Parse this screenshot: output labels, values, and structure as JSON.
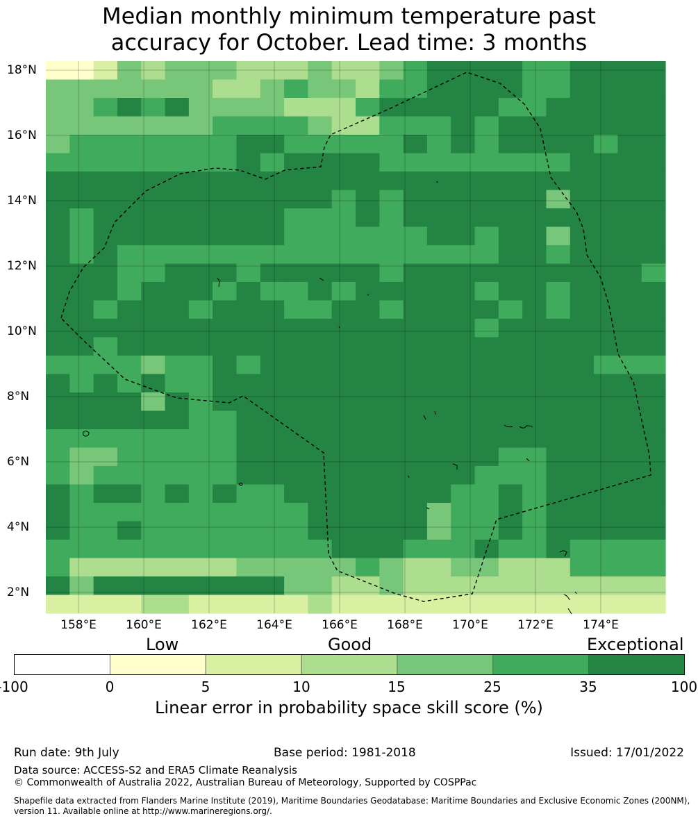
{
  "title": {
    "line1": "Median monthly minimum temperature past",
    "line2": "accuracy for October. Lead time: 3 months"
  },
  "map": {
    "lat_labels": [
      "18°N",
      "16°N",
      "14°N",
      "12°N",
      "10°N",
      "8°N",
      "6°N",
      "4°N",
      "2°N"
    ],
    "lon_labels": [
      "158°E",
      "160°E",
      "162°E",
      "164°E",
      "166°E",
      "168°E",
      "170°E",
      "172°E",
      "174°E"
    ],
    "grid": [
      "00132333222322345555445555",
      "33333332234332445555445555",
      "33454533332224555554455555",
      "33333334444322444545555555",
      "34444444554444454545555455",
      "44444444545555444444445555",
      "55555555555555555555555555",
      "55555555555545455555535555",
      "54555555554445455555555555",
      "54555555554444445545535555",
      "54544444444444444445545555",
      "55544555455555455555555554",
      "55545554544545555545545555",
      "55455545554455455554545555",
      "55555555555555555545555555",
      "55455555555555555555555555",
      "44443445455555555555555444",
      "54545445555555555555555555",
      "55553545555555555555555555",
      "55555544555555555555555555",
      "44444444555555555555555555",
      "43344444555555555554455555",
      "43444444555555555544455555",
      "54554545445555555445455555",
      "54444444444555553445455555",
      "54454444444555553445455555",
      "44444444444455544454454444",
      "42222222333334322332224444",
      "53555555553322322222222222",
      "11112211111211111111111111"
    ]
  },
  "colorbar": {
    "categories": [
      "Low",
      "Good",
      "Exceptional"
    ],
    "ticks": [
      "-100",
      "0",
      "5",
      "10",
      "15",
      "25",
      "35",
      "100"
    ],
    "colors": [
      "#ffffff",
      "#ffffcc",
      "#d9f0a3",
      "#addd8e",
      "#78c679",
      "#41ab5d",
      "#238443"
    ],
    "title": "Linear error in probability space skill score (%)"
  },
  "footer": {
    "run_date": "Run date: 9th July",
    "base_period": "Base period: 1981-2018",
    "issued": "Issued: 17/01/2022",
    "data_source": "Data source: ACCESS-S2 and ERA5 Climate Reanalysis",
    "copyright": "© Commonwealth of Australia 2022, Australian Bureau of Meteorology, Supported by COSPPac",
    "shapefile": "Shapefile data extracted from Flanders Marine Institute (2019), Maritime Boundaries Geodatabase: Maritime Boundaries and Exclusive Economic Zones (200NM), version 11. Available online at http://www.marineregions.org/."
  }
}
